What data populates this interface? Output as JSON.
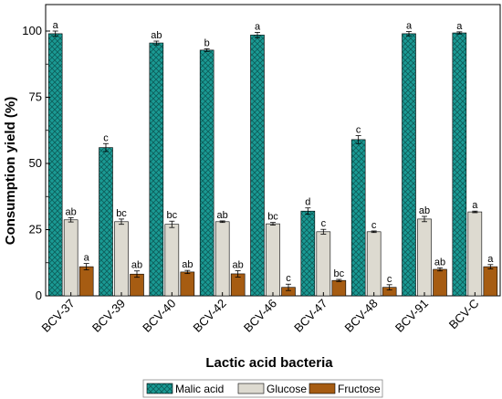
{
  "chart_data": {
    "type": "bar",
    "xlabel": "Lactic acid bacteria",
    "ylabel": "Consumption yield (%)",
    "ylim": [
      0,
      110
    ],
    "yticks": [
      0,
      25,
      50,
      75,
      100
    ],
    "legend_position": "bottom",
    "grid": false,
    "categories": [
      "BCV-37",
      "BCV-39",
      "BCV-40",
      "BCV-42",
      "BCV-46",
      "BCV-47",
      "BCV-48",
      "BCV-91",
      "BCV-C"
    ],
    "series": [
      {
        "name": "Malic acid",
        "color": "#1a9a94",
        "pattern": "crosshatch",
        "values": [
          99.0,
          56.0,
          95.5,
          92.8,
          98.5,
          32.0,
          59.0,
          99.0,
          99.3
        ],
        "errors": [
          1.0,
          1.5,
          0.7,
          0.5,
          1.0,
          1.2,
          1.5,
          0.8,
          0.4
        ],
        "letters": [
          "a",
          "c",
          "ab",
          "b",
          "a",
          "d",
          "c",
          "a",
          "a"
        ]
      },
      {
        "name": "Glucose",
        "color": "#dddad0",
        "pattern": "solid",
        "values": [
          28.7,
          28.0,
          27.0,
          28.0,
          27.2,
          24.2,
          24.2,
          29.0,
          31.7
        ],
        "errors": [
          0.8,
          1.0,
          1.2,
          0.3,
          0.5,
          0.9,
          0.3,
          1.0,
          0.3
        ],
        "letters": [
          "ab",
          "bc",
          "bc",
          "ab",
          "bc",
          "c",
          "c",
          "ab",
          "a"
        ]
      },
      {
        "name": "Fructose",
        "color": "#a65c12",
        "pattern": "solid",
        "values": [
          11.0,
          8.2,
          9.0,
          8.3,
          3.2,
          5.8,
          3.2,
          10.0,
          11.0
        ],
        "errors": [
          1.2,
          1.2,
          0.6,
          1.2,
          1.2,
          0.4,
          1.0,
          0.6,
          0.8
        ],
        "letters": [
          "a",
          "ab",
          "ab",
          "ab",
          "c",
          "bc",
          "c",
          "ab",
          "a"
        ]
      }
    ]
  }
}
